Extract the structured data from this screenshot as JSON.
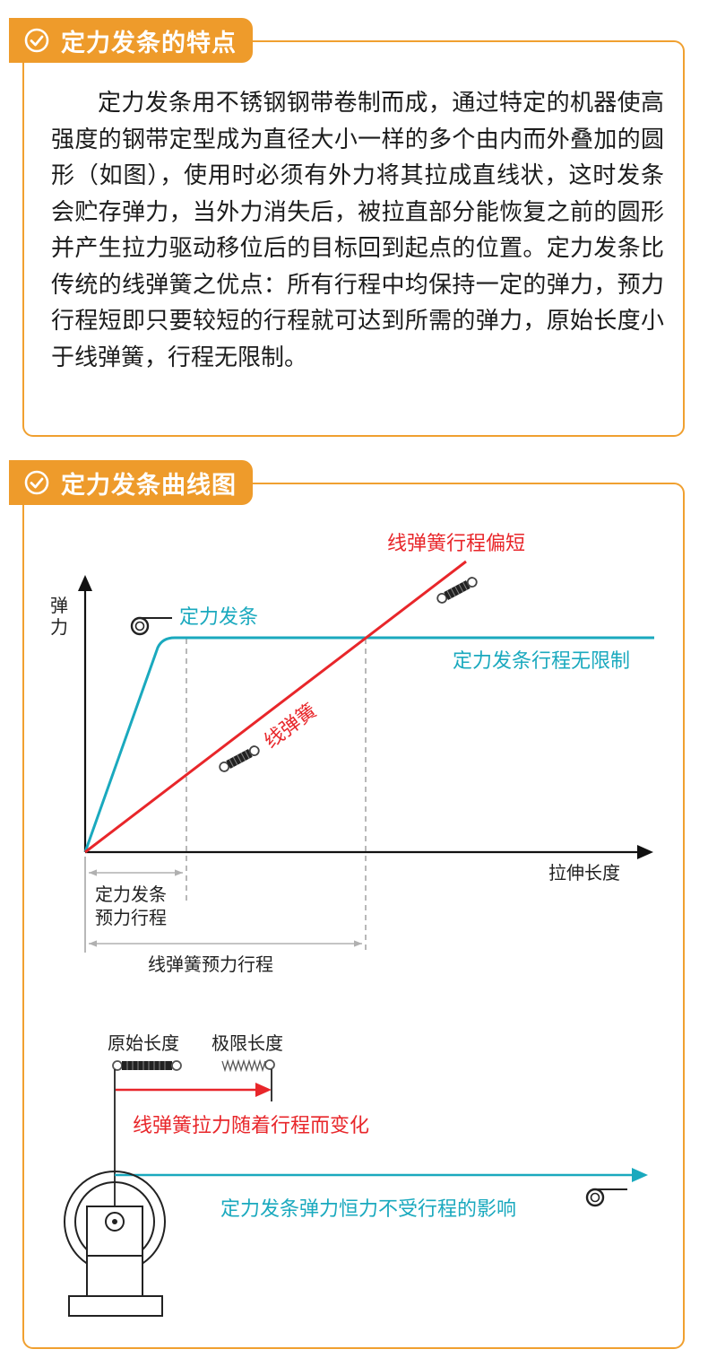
{
  "section1": {
    "title": "定力发条的特点",
    "body": "定力发条用不锈钢钢带卷制而成，通过特定的机器使高强度的钢带定型成为直径大小一样的多个由内而外叠加的圆形（如图），使用时必须有外力将其拉成直线状，这时发条会贮存弹力，当外力消失后，被拉直部分能恢复之前的圆形并产生拉力驱动移位后的目标回到起点的位置。定力发条比传统的线弹簧之优点：所有行程中均保持一定的弹力，预力行程短即只要较短的行程就可达到所需的弹力，原始长度小于线弹簧，行程无限制。"
  },
  "section2": {
    "title": "定力发条曲线图",
    "chart": {
      "y_axis_label": "弹力",
      "x_axis_label": "拉伸长度",
      "constant_spring_label": "定力发条",
      "constant_spring_note": "定力发条行程无限制",
      "line_spring_label": "线弹簧",
      "line_spring_note": "线弹簧行程偏短",
      "constant_pretravel_line1": "定力发条",
      "constant_pretravel_line2": "预力行程",
      "line_pretravel": "线弹簧预力行程"
    },
    "mechanism": {
      "original_length": "原始长度",
      "limit_length": "极限长度",
      "line_force_note": "线弹簧拉力随着行程而变化",
      "constant_force_note": "定力发条弹力恒力不受行程的影响"
    }
  },
  "colors": {
    "accent": "#ee9b2b",
    "teal": "#1aa9be",
    "red": "#e8262a"
  }
}
